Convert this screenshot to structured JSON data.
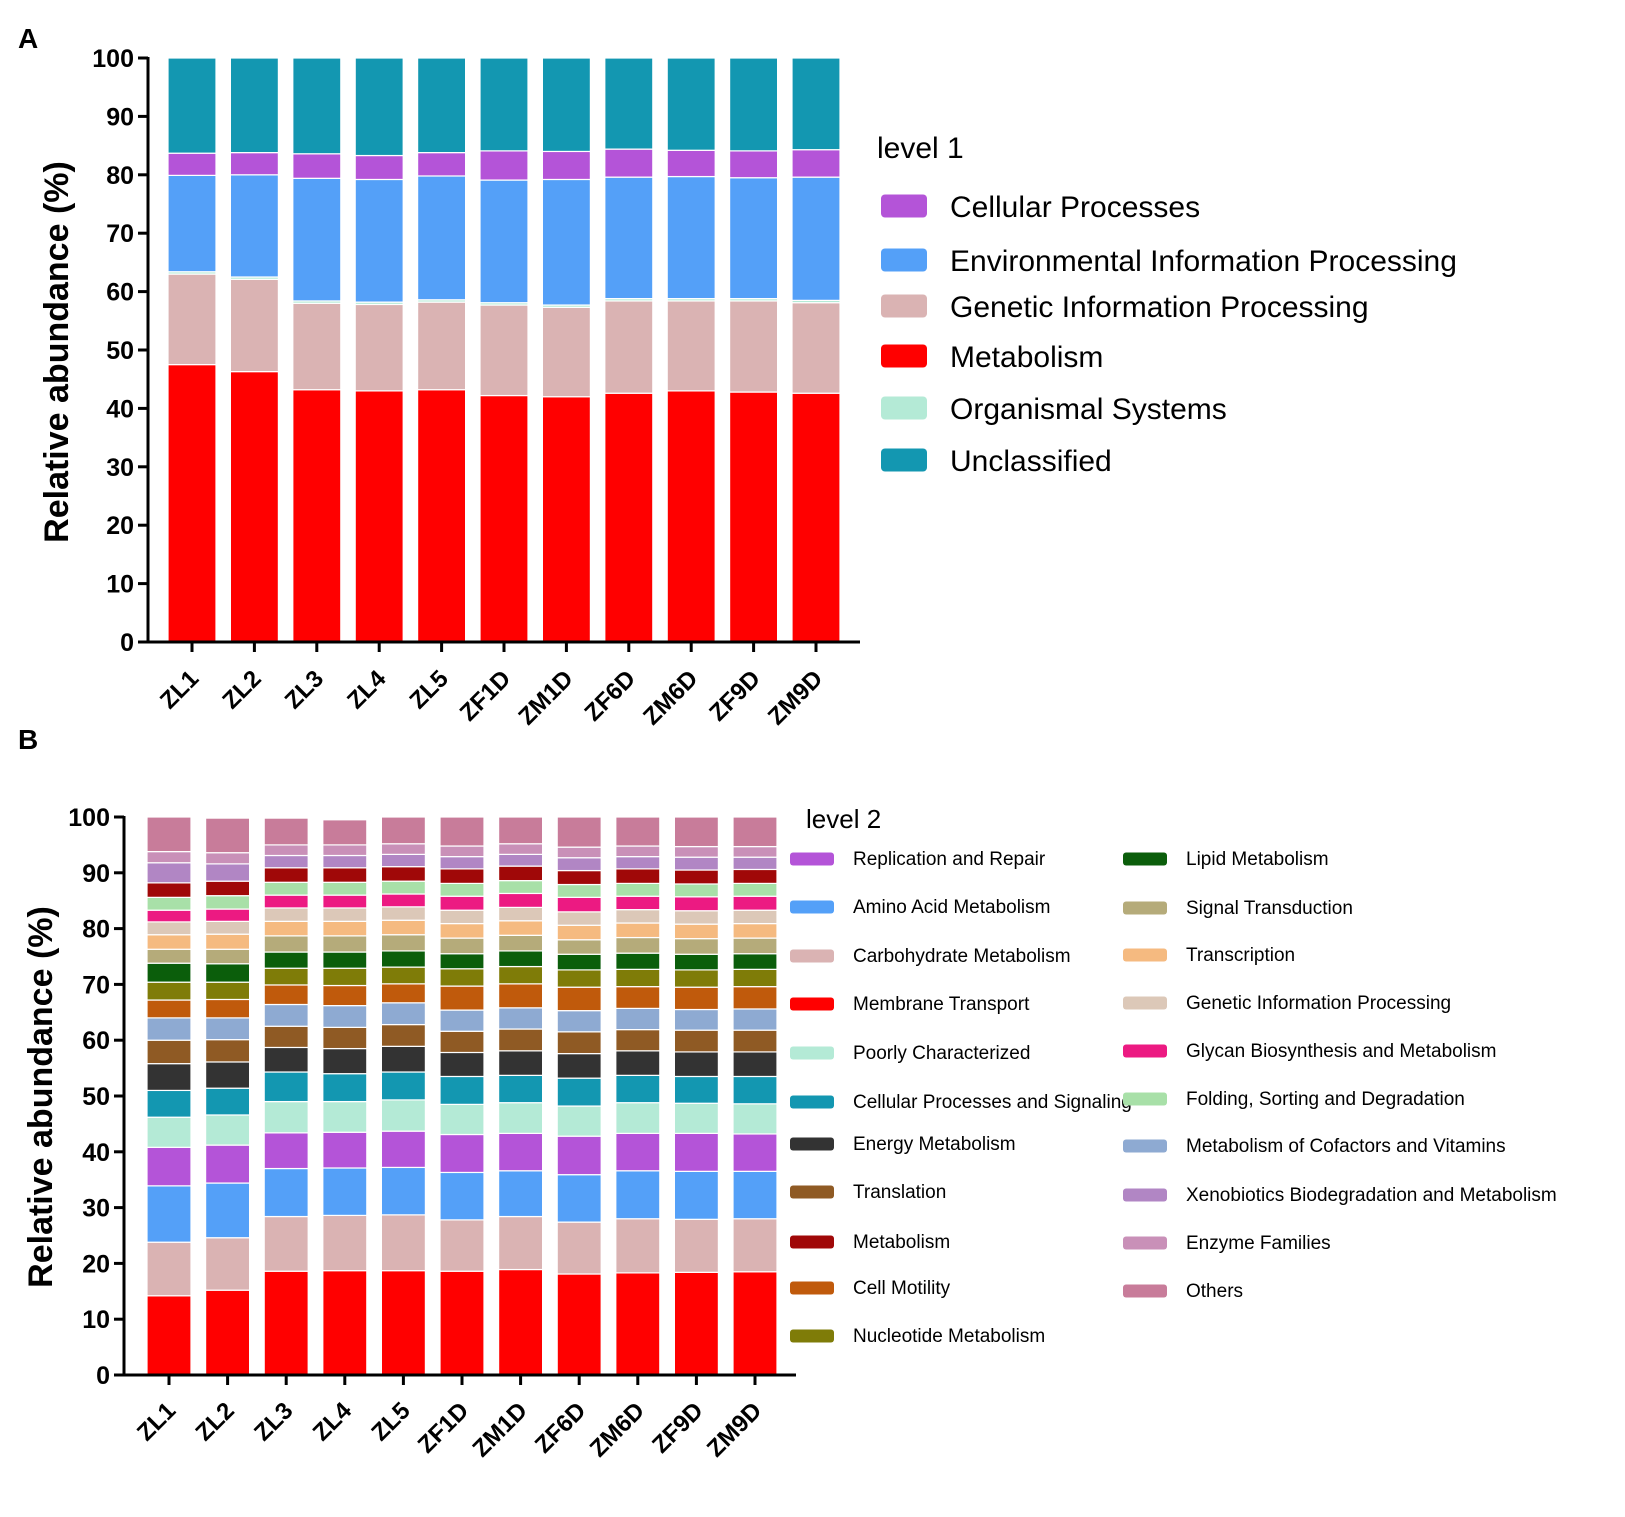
{
  "chart_data": [
    {
      "panel": "A",
      "type": "bar",
      "stacked": true,
      "title": "",
      "xlabel": "",
      "ylabel": "Relative abundance (%)",
      "ylim": [
        0,
        100
      ],
      "yticks": [
        0,
        10,
        20,
        30,
        40,
        50,
        60,
        70,
        80,
        90,
        100
      ],
      "categories": [
        "ZL1",
        "ZL2",
        "ZL3",
        "ZL4",
        "ZL5",
        "ZF1D",
        "ZM1D",
        "ZF6D",
        "ZM6D",
        "ZF9D",
        "ZM9D"
      ],
      "legend_title": "level 1",
      "legend_position": "right",
      "stack_order": [
        "Metabolism",
        "Genetic Information Processing",
        "Organismal Systems",
        "Environmental Information Processing",
        "Cellular Processes",
        "Unclassified"
      ],
      "series": [
        {
          "name": "Cellular Processes",
          "color": "#b454d8",
          "values": [
            3.8,
            3.8,
            4.2,
            4.1,
            4.0,
            5.0,
            4.8,
            4.8,
            4.5,
            4.6,
            4.7
          ]
        },
        {
          "name": "Environmental Information Processing",
          "color": "#54a0f8",
          "values": [
            16.5,
            17.5,
            21.0,
            21.0,
            21.2,
            21.0,
            21.5,
            20.8,
            20.9,
            20.7,
            21.1
          ]
        },
        {
          "name": "Genetic Information Processing",
          "color": "#dab3b3",
          "values": [
            15.5,
            15.8,
            14.8,
            14.8,
            15.0,
            15.5,
            15.3,
            15.8,
            15.4,
            15.6,
            15.5
          ]
        },
        {
          "name": "Metabolism",
          "color": "#ff0000",
          "values": [
            47.5,
            46.3,
            43.2,
            43.0,
            43.2,
            42.2,
            42.0,
            42.6,
            43.0,
            42.8,
            42.6
          ]
        },
        {
          "name": "Organismal Systems",
          "color": "#b4ead6",
          "values": [
            0.4,
            0.4,
            0.4,
            0.4,
            0.4,
            0.4,
            0.4,
            0.4,
            0.4,
            0.4,
            0.4
          ]
        },
        {
          "name": "Unclassified",
          "color": "#1397b1",
          "values": [
            16.3,
            16.2,
            16.4,
            16.7,
            16.2,
            15.9,
            16.0,
            15.6,
            15.8,
            15.9,
            15.7
          ]
        }
      ]
    },
    {
      "panel": "B",
      "type": "bar",
      "stacked": true,
      "title": "",
      "xlabel": "",
      "ylabel": "Relative abundance (%)",
      "ylim": [
        0,
        100
      ],
      "yticks": [
        0,
        10,
        20,
        30,
        40,
        50,
        60,
        70,
        80,
        90,
        100
      ],
      "categories": [
        "ZL1",
        "ZL2",
        "ZL3",
        "ZL4",
        "ZL5",
        "ZF1D",
        "ZM1D",
        "ZF6D",
        "ZM6D",
        "ZF9D",
        "ZM9D"
      ],
      "legend_title": "level 2",
      "legend_position": "right",
      "series": [
        {
          "name": "Membrane Transport",
          "color": "#ff0000",
          "values": [
            14.2,
            15.2,
            18.6,
            18.7,
            18.7,
            18.6,
            18.9,
            18.1,
            18.3,
            18.4,
            18.5
          ]
        },
        {
          "name": "Carbohydrate Metabolism",
          "color": "#dab3b3",
          "values": [
            9.6,
            9.4,
            9.8,
            9.9,
            10.0,
            9.2,
            9.5,
            9.3,
            9.7,
            9.5,
            9.5
          ]
        },
        {
          "name": "Amino Acid Metabolism",
          "color": "#54a0f8",
          "values": [
            10.1,
            9.8,
            8.6,
            8.5,
            8.5,
            8.5,
            8.2,
            8.5,
            8.6,
            8.6,
            8.5
          ]
        },
        {
          "name": "Replication and Repair",
          "color": "#b454d8",
          "values": [
            6.9,
            6.8,
            6.4,
            6.4,
            6.5,
            6.8,
            6.7,
            6.9,
            6.7,
            6.8,
            6.7
          ]
        },
        {
          "name": "Poorly Characterized",
          "color": "#b4ead6",
          "values": [
            5.4,
            5.4,
            5.6,
            5.5,
            5.6,
            5.4,
            5.5,
            5.4,
            5.5,
            5.4,
            5.4
          ]
        },
        {
          "name": "Cellular Processes and Signaling",
          "color": "#1397b1",
          "values": [
            4.8,
            4.8,
            5.3,
            5.0,
            5.0,
            5.0,
            4.9,
            5.0,
            4.9,
            4.8,
            4.9
          ]
        },
        {
          "name": "Energy Metabolism",
          "color": "#333333",
          "values": [
            4.8,
            4.7,
            4.4,
            4.5,
            4.6,
            4.3,
            4.4,
            4.4,
            4.4,
            4.4,
            4.4
          ]
        },
        {
          "name": "Translation",
          "color": "#8f5a24",
          "values": [
            4.2,
            4.0,
            3.8,
            3.8,
            3.9,
            3.8,
            3.9,
            3.9,
            3.8,
            3.9,
            3.9
          ]
        },
        {
          "name": "Metabolism of Cofactors and Vitamins",
          "color": "#8eaad2",
          "values": [
            4.0,
            3.9,
            3.9,
            3.9,
            3.9,
            3.8,
            3.8,
            3.8,
            3.8,
            3.7,
            3.8
          ]
        },
        {
          "name": "Cell Motility",
          "color": "#c05a0c",
          "values": [
            3.2,
            3.3,
            3.5,
            3.6,
            3.4,
            4.3,
            4.3,
            4.2,
            3.9,
            4.0,
            4.0
          ]
        },
        {
          "name": "Nucleotide Metabolism",
          "color": "#7f7c08",
          "values": [
            3.2,
            3.1,
            3.0,
            3.1,
            3.0,
            3.1,
            3.1,
            3.1,
            3.1,
            3.1,
            3.1
          ]
        },
        {
          "name": "Lipid Metabolism",
          "color": "#0b5e0b",
          "values": [
            3.4,
            3.3,
            2.9,
            2.9,
            2.9,
            2.7,
            2.8,
            2.8,
            2.9,
            2.8,
            2.8
          ]
        },
        {
          "name": "Signal Transduction",
          "color": "#b5ab7a",
          "values": [
            2.5,
            2.6,
            2.9,
            2.9,
            2.9,
            2.8,
            2.8,
            2.6,
            2.8,
            2.8,
            2.8
          ]
        },
        {
          "name": "Transcription",
          "color": "#f5ba80",
          "values": [
            2.6,
            2.7,
            2.6,
            2.6,
            2.6,
            2.6,
            2.6,
            2.6,
            2.6,
            2.6,
            2.6
          ]
        },
        {
          "name": "Genetic Information Processing",
          "color": "#dcc8b8",
          "values": [
            2.3,
            2.3,
            2.4,
            2.4,
            2.4,
            2.4,
            2.4,
            2.4,
            2.4,
            2.4,
            2.4
          ]
        },
        {
          "name": "Glycan Biosynthesis and Metabolism",
          "color": "#ec1a82",
          "values": [
            2.1,
            2.2,
            2.3,
            2.3,
            2.3,
            2.5,
            2.5,
            2.6,
            2.4,
            2.5,
            2.5
          ]
        },
        {
          "name": "Folding, Sorting and Degradation",
          "color": "#a8e0a8",
          "values": [
            2.3,
            2.4,
            2.3,
            2.3,
            2.3,
            2.3,
            2.3,
            2.3,
            2.3,
            2.3,
            2.3
          ]
        },
        {
          "name": "Metabolism",
          "color": "#a00808",
          "values": [
            2.6,
            2.6,
            2.6,
            2.6,
            2.6,
            2.6,
            2.6,
            2.5,
            2.6,
            2.5,
            2.5
          ]
        },
        {
          "name": "Xenobiotics Biodegradation and Metabolism",
          "color": "#b186c4",
          "values": [
            3.6,
            3.1,
            2.2,
            2.2,
            2.2,
            2.2,
            2.1,
            2.3,
            2.2,
            2.3,
            2.2
          ]
        },
        {
          "name": "Enzyme Families",
          "color": "#c990b8",
          "values": [
            2.0,
            2.0,
            1.9,
            1.9,
            1.9,
            1.9,
            1.9,
            1.9,
            1.9,
            1.9,
            1.9
          ]
        },
        {
          "name": "Others",
          "color": "#c87c9a",
          "values": [
            6.2,
            6.2,
            4.8,
            4.5,
            4.9,
            5.3,
            4.9,
            5.5,
            5.2,
            5.3,
            5.3
          ]
        }
      ],
      "legend_columns": [
        [
          "Replication and Repair",
          "Amino Acid Metabolism",
          "Carbohydrate Metabolism",
          "Membrane Transport",
          "Poorly Characterized",
          "Cellular Processes and Signaling",
          "Energy Metabolism",
          "Translation",
          "Metabolism",
          "Cell Motility",
          "Nucleotide Metabolism"
        ],
        [
          "Lipid Metabolism",
          "Signal Transduction",
          "Transcription",
          "Genetic Information Processing",
          "Glycan Biosynthesis and Metabolism",
          "Folding, Sorting and Degradation",
          "Metabolism of Cofactors and Vitamins",
          "Xenobiotics Biodegradation and Metabolism",
          "Enzyme Families",
          "Others"
        ]
      ]
    }
  ]
}
